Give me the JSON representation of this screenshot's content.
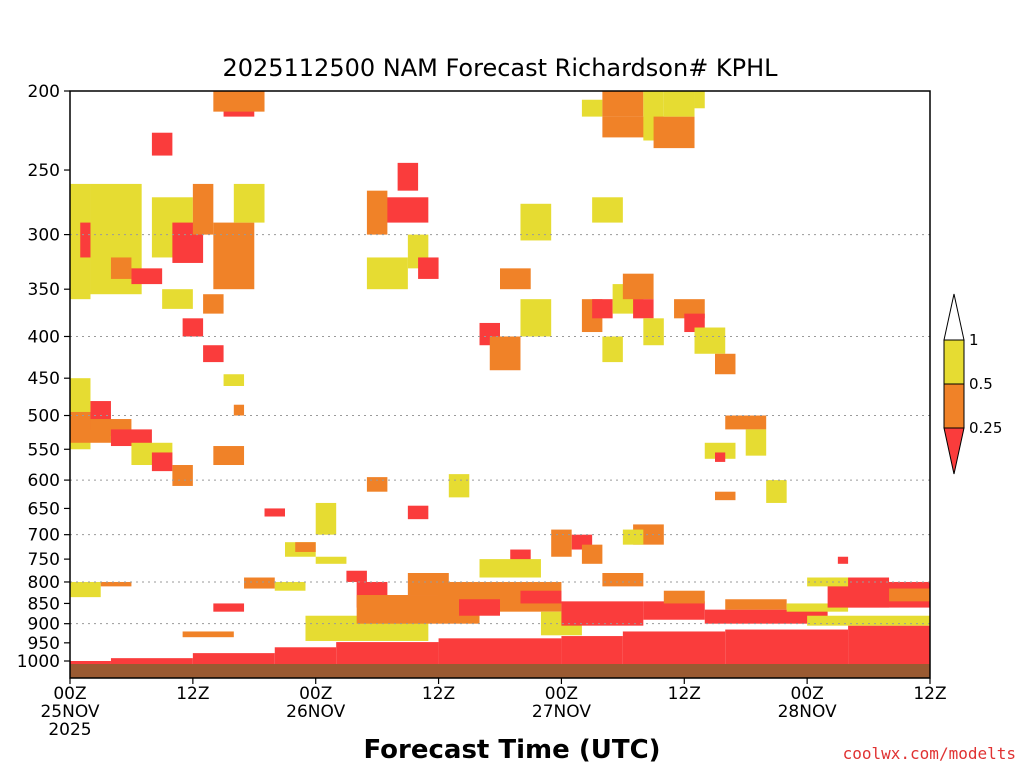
{
  "chart_data": {
    "type": "heatmap",
    "title": "2025112500 NAM Forecast Richardson# KPHL",
    "xlabel": "Forecast Time (UTC)",
    "ylabel": "",
    "credit": "coolwx.com/modelts",
    "y_axis": {
      "scale": "log-pressure",
      "range_hpa": [
        1000,
        200
      ],
      "ticks": [
        200,
        250,
        300,
        350,
        400,
        450,
        500,
        550,
        600,
        650,
        700,
        750,
        800,
        850,
        900,
        950,
        1000
      ],
      "tick_labels": [
        "200",
        "250",
        "300",
        "350",
        "400",
        "450",
        "500",
        "550",
        "600",
        "650",
        "700",
        "750",
        "800",
        "850",
        "900",
        "950",
        "1000"
      ],
      "dotted_gridlines_hpa": [
        300,
        400,
        500,
        600,
        700,
        800,
        900
      ]
    },
    "x_axis": {
      "units": "forecast hours",
      "range_hours": [
        0,
        84
      ],
      "ticks": [
        {
          "hour": 0,
          "line1": "00Z",
          "line2": "25NOV",
          "line3": "2025"
        },
        {
          "hour": 12,
          "line1": "12Z",
          "line2": "",
          "line3": ""
        },
        {
          "hour": 24,
          "line1": "00Z",
          "line2": "26NOV",
          "line3": ""
        },
        {
          "hour": 36,
          "line1": "12Z",
          "line2": "",
          "line3": ""
        },
        {
          "hour": 48,
          "line1": "00Z",
          "line2": "27NOV",
          "line3": ""
        },
        {
          "hour": 60,
          "line1": "12Z",
          "line2": "",
          "line3": ""
        },
        {
          "hour": 72,
          "line1": "00Z",
          "line2": "28NOV",
          "line3": ""
        },
        {
          "hour": 84,
          "line1": "12Z",
          "line2": "",
          "line3": ""
        }
      ]
    },
    "colorbar": {
      "labels": [
        "1",
        "0.5",
        "0.25"
      ],
      "bins": [
        {
          "range": ">1",
          "color": "#ffffff"
        },
        {
          "range": "0.5-1",
          "color": "#e6dc32"
        },
        {
          "range": "0.25-0.5",
          "color": "#f08228"
        },
        {
          "range": "<0.25",
          "color": "#fa3c3c"
        }
      ]
    },
    "colors": {
      "very_low": "#fa3c3c",
      "low": "#f08228",
      "moderate": "#e6dc32",
      "ground": "#9a5a32"
    },
    "ground_pressure_hpa": 1012,
    "surface_layer": [
      {
        "h0": 0,
        "h1": 4,
        "p_top": 1000,
        "p_bot": 1012
      },
      {
        "h0": 4,
        "h1": 12,
        "p_top": 992,
        "p_bot": 1012
      },
      {
        "h0": 12,
        "h1": 20,
        "p_top": 978,
        "p_bot": 1012
      },
      {
        "h0": 20,
        "h1": 26,
        "p_top": 962,
        "p_bot": 1012
      },
      {
        "h0": 26,
        "h1": 36,
        "p_top": 948,
        "p_bot": 1012
      },
      {
        "h0": 36,
        "h1": 48,
        "p_top": 938,
        "p_bot": 1012
      },
      {
        "h0": 48,
        "h1": 54,
        "p_top": 932,
        "p_bot": 1012
      },
      {
        "h0": 54,
        "h1": 64,
        "p_top": 920,
        "p_bot": 1012
      },
      {
        "h0": 64,
        "h1": 76,
        "p_top": 915,
        "p_bot": 1012
      },
      {
        "h0": 76,
        "h1": 84,
        "p_top": 905,
        "p_bot": 1012
      }
    ],
    "cells": [
      {
        "h0": 0,
        "h1": 2,
        "p_top": 450,
        "p_bot": 550,
        "cat": "moderate"
      },
      {
        "h0": 0,
        "h1": 4,
        "p_top": 495,
        "p_bot": 540,
        "cat": "low"
      },
      {
        "h0": 2,
        "h1": 4,
        "p_top": 480,
        "p_bot": 520,
        "cat": "very_low"
      },
      {
        "h0": 2,
        "h1": 6,
        "p_top": 505,
        "p_bot": 530,
        "cat": "low"
      },
      {
        "h0": 4,
        "h1": 8,
        "p_top": 520,
        "p_bot": 545,
        "cat": "very_low"
      },
      {
        "h0": 6,
        "h1": 10,
        "p_top": 540,
        "p_bot": 575,
        "cat": "moderate"
      },
      {
        "h0": 8,
        "h1": 10,
        "p_top": 555,
        "p_bot": 585,
        "cat": "very_low"
      },
      {
        "h0": 10,
        "h1": 12,
        "p_top": 575,
        "p_bot": 610,
        "cat": "low"
      },
      {
        "h0": 14,
        "h1": 17,
        "p_top": 545,
        "p_bot": 575,
        "cat": "low"
      },
      {
        "h0": 19,
        "h1": 21,
        "p_top": 650,
        "p_bot": 665,
        "cat": "very_low"
      },
      {
        "h0": 0,
        "h1": 2,
        "p_top": 260,
        "p_bot": 360,
        "cat": "moderate"
      },
      {
        "h0": 1,
        "h1": 5,
        "p_top": 290,
        "p_bot": 320,
        "cat": "very_low"
      },
      {
        "h0": 3,
        "h1": 5,
        "p_top": 280,
        "p_bot": 300,
        "cat": "low"
      },
      {
        "h0": 2,
        "h1": 7,
        "p_top": 260,
        "p_bot": 355,
        "cat": "moderate"
      },
      {
        "h0": 4,
        "h1": 6,
        "p_top": 320,
        "p_bot": 340,
        "cat": "low"
      },
      {
        "h0": 6,
        "h1": 9,
        "p_top": 330,
        "p_bot": 345,
        "cat": "very_low"
      },
      {
        "h0": 8,
        "h1": 12,
        "p_top": 270,
        "p_bot": 320,
        "cat": "moderate"
      },
      {
        "h0": 8,
        "h1": 10,
        "p_top": 225,
        "p_bot": 240,
        "cat": "very_low"
      },
      {
        "h0": 9,
        "h1": 12,
        "p_top": 350,
        "p_bot": 370,
        "cat": "moderate"
      },
      {
        "h0": 10,
        "h1": 13,
        "p_top": 290,
        "p_bot": 325,
        "cat": "very_low"
      },
      {
        "h0": 11,
        "h1": 13,
        "p_top": 380,
        "p_bot": 400,
        "cat": "very_low"
      },
      {
        "h0": 12,
        "h1": 14,
        "p_top": 260,
        "p_bot": 300,
        "cat": "low"
      },
      {
        "h0": 13,
        "h1": 15,
        "p_top": 355,
        "p_bot": 375,
        "cat": "low"
      },
      {
        "h0": 13,
        "h1": 15,
        "p_top": 410,
        "p_bot": 430,
        "cat": "very_low"
      },
      {
        "h0": 14,
        "h1": 18,
        "p_top": 290,
        "p_bot": 350,
        "cat": "low"
      },
      {
        "h0": 16,
        "h1": 19,
        "p_top": 260,
        "p_bot": 290,
        "cat": "moderate"
      },
      {
        "h0": 15,
        "h1": 18,
        "p_top": 200,
        "p_bot": 215,
        "cat": "very_low"
      },
      {
        "h0": 14,
        "h1": 19,
        "p_top": 200,
        "p_bot": 212,
        "cat": "low"
      },
      {
        "h0": 16,
        "h1": 17,
        "p_top": 485,
        "p_bot": 500,
        "cat": "low"
      },
      {
        "h0": 15,
        "h1": 17,
        "p_top": 445,
        "p_bot": 460,
        "cat": "moderate"
      },
      {
        "h0": 30,
        "h1": 35,
        "p_top": 270,
        "p_bot": 290,
        "cat": "very_low"
      },
      {
        "h0": 29,
        "h1": 31,
        "p_top": 265,
        "p_bot": 300,
        "cat": "low"
      },
      {
        "h0": 32,
        "h1": 34,
        "p_top": 245,
        "p_bot": 265,
        "cat": "very_low"
      },
      {
        "h0": 33,
        "h1": 35,
        "p_top": 300,
        "p_bot": 330,
        "cat": "moderate"
      },
      {
        "h0": 34,
        "h1": 36,
        "p_top": 320,
        "p_bot": 340,
        "cat": "very_low"
      },
      {
        "h0": 29,
        "h1": 33,
        "p_top": 320,
        "p_bot": 350,
        "cat": "moderate"
      },
      {
        "h0": 40,
        "h1": 42,
        "p_top": 385,
        "p_bot": 410,
        "cat": "very_low"
      },
      {
        "h0": 41,
        "h1": 44,
        "p_top": 400,
        "p_bot": 440,
        "cat": "low"
      },
      {
        "h0": 42,
        "h1": 45,
        "p_top": 330,
        "p_bot": 350,
        "cat": "low"
      },
      {
        "h0": 44,
        "h1": 47,
        "p_top": 360,
        "p_bot": 400,
        "cat": "moderate"
      },
      {
        "h0": 44,
        "h1": 47,
        "p_top": 275,
        "p_bot": 305,
        "cat": "moderate"
      },
      {
        "h0": 50,
        "h1": 52,
        "p_top": 205,
        "p_bot": 215,
        "cat": "moderate"
      },
      {
        "h0": 51,
        "h1": 54,
        "p_top": 270,
        "p_bot": 290,
        "cat": "moderate"
      },
      {
        "h0": 52,
        "h1": 57,
        "p_top": 215,
        "p_bot": 228,
        "cat": "low"
      },
      {
        "h0": 52,
        "h1": 56,
        "p_top": 200,
        "p_bot": 215,
        "cat": "low"
      },
      {
        "h0": 56,
        "h1": 58,
        "p_top": 200,
        "p_bot": 230,
        "cat": "moderate"
      },
      {
        "h0": 57,
        "h1": 61,
        "p_top": 215,
        "p_bot": 235,
        "cat": "low"
      },
      {
        "h0": 58,
        "h1": 61,
        "p_top": 200,
        "p_bot": 215,
        "cat": "moderate"
      },
      {
        "h0": 61,
        "h1": 62,
        "p_top": 200,
        "p_bot": 210,
        "cat": "moderate"
      },
      {
        "h0": 50,
        "h1": 52,
        "p_top": 360,
        "p_bot": 395,
        "cat": "low"
      },
      {
        "h0": 51,
        "h1": 53,
        "p_top": 360,
        "p_bot": 380,
        "cat": "very_low"
      },
      {
        "h0": 53,
        "h1": 56,
        "p_top": 345,
        "p_bot": 375,
        "cat": "moderate"
      },
      {
        "h0": 54,
        "h1": 57,
        "p_top": 335,
        "p_bot": 360,
        "cat": "low"
      },
      {
        "h0": 55,
        "h1": 57,
        "p_top": 360,
        "p_bot": 380,
        "cat": "very_low"
      },
      {
        "h0": 52,
        "h1": 54,
        "p_top": 400,
        "p_bot": 430,
        "cat": "moderate"
      },
      {
        "h0": 56,
        "h1": 58,
        "p_top": 380,
        "p_bot": 410,
        "cat": "moderate"
      },
      {
        "h0": 59,
        "h1": 62,
        "p_top": 360,
        "p_bot": 380,
        "cat": "low"
      },
      {
        "h0": 60,
        "h1": 62,
        "p_top": 375,
        "p_bot": 395,
        "cat": "very_low"
      },
      {
        "h0": 61,
        "h1": 64,
        "p_top": 390,
        "p_bot": 420,
        "cat": "moderate"
      },
      {
        "h0": 63,
        "h1": 65,
        "p_top": 420,
        "p_bot": 445,
        "cat": "low"
      },
      {
        "h0": 64,
        "h1": 68,
        "p_top": 500,
        "p_bot": 520,
        "cat": "low"
      },
      {
        "h0": 66,
        "h1": 68,
        "p_top": 520,
        "p_bot": 560,
        "cat": "moderate"
      },
      {
        "h0": 62,
        "h1": 65,
        "p_top": 540,
        "p_bot": 565,
        "cat": "moderate"
      },
      {
        "h0": 63,
        "h1": 64,
        "p_top": 555,
        "p_bot": 570,
        "cat": "very_low"
      },
      {
        "h0": 68,
        "h1": 70,
        "p_top": 600,
        "p_bot": 640,
        "cat": "moderate"
      },
      {
        "h0": 63,
        "h1": 65,
        "p_top": 620,
        "p_bot": 635,
        "cat": "low"
      },
      {
        "h0": 55,
        "h1": 58,
        "p_top": 680,
        "p_bot": 720,
        "cat": "low"
      },
      {
        "h0": 54,
        "h1": 56,
        "p_top": 690,
        "p_bot": 720,
        "cat": "moderate"
      },
      {
        "h0": 49,
        "h1": 51,
        "p_top": 700,
        "p_bot": 730,
        "cat": "very_low"
      },
      {
        "h0": 47,
        "h1": 49,
        "p_top": 690,
        "p_bot": 745,
        "cat": "low"
      },
      {
        "h0": 50,
        "h1": 52,
        "p_top": 720,
        "p_bot": 760,
        "cat": "low"
      },
      {
        "h0": 43,
        "h1": 45,
        "p_top": 730,
        "p_bot": 760,
        "cat": "very_low"
      },
      {
        "h0": 40,
        "h1": 46,
        "p_top": 750,
        "p_bot": 790,
        "cat": "moderate"
      },
      {
        "h0": 33,
        "h1": 37,
        "p_top": 780,
        "p_bot": 830,
        "cat": "low"
      },
      {
        "h0": 27,
        "h1": 29,
        "p_top": 775,
        "p_bot": 800,
        "cat": "very_low"
      },
      {
        "h0": 28,
        "h1": 31,
        "p_top": 800,
        "p_bot": 860,
        "cat": "very_low"
      },
      {
        "h0": 29,
        "h1": 31,
        "p_top": 595,
        "p_bot": 620,
        "cat": "low"
      },
      {
        "h0": 33,
        "h1": 35,
        "p_top": 645,
        "p_bot": 670,
        "cat": "very_low"
      },
      {
        "h0": 37,
        "h1": 39,
        "p_top": 590,
        "p_bot": 630,
        "cat": "moderate"
      },
      {
        "h0": 24,
        "h1": 26,
        "p_top": 640,
        "p_bot": 700,
        "cat": "moderate"
      },
      {
        "h0": 24,
        "h1": 27,
        "p_top": 745,
        "p_bot": 760,
        "cat": "moderate"
      },
      {
        "h0": 21,
        "h1": 24,
        "p_top": 715,
        "p_bot": 745,
        "cat": "moderate"
      },
      {
        "h0": 22,
        "h1": 24,
        "p_top": 715,
        "p_bot": 735,
        "cat": "low"
      },
      {
        "h0": 20,
        "h1": 23,
        "p_top": 800,
        "p_bot": 820,
        "cat": "moderate"
      },
      {
        "h0": 17,
        "h1": 20,
        "p_top": 790,
        "p_bot": 815,
        "cat": "low"
      },
      {
        "h0": 14,
        "h1": 17,
        "p_top": 850,
        "p_bot": 870,
        "cat": "very_low"
      },
      {
        "h0": 11,
        "h1": 16,
        "p_top": 920,
        "p_bot": 935,
        "cat": "low"
      },
      {
        "h0": 0,
        "h1": 3,
        "p_top": 800,
        "p_bot": 835,
        "cat": "moderate"
      },
      {
        "h0": 3,
        "h1": 6,
        "p_top": 800,
        "p_bot": 810,
        "cat": "low"
      },
      {
        "h0": 23,
        "h1": 35,
        "p_top": 880,
        "p_bot": 945,
        "cat": "moderate"
      },
      {
        "h0": 28,
        "h1": 40,
        "p_top": 830,
        "p_bot": 900,
        "cat": "low"
      },
      {
        "h0": 36,
        "h1": 48,
        "p_top": 800,
        "p_bot": 870,
        "cat": "low"
      },
      {
        "h0": 38,
        "h1": 42,
        "p_top": 840,
        "p_bot": 880,
        "cat": "very_low"
      },
      {
        "h0": 44,
        "h1": 48,
        "p_top": 820,
        "p_bot": 850,
        "cat": "very_low"
      },
      {
        "h0": 46,
        "h1": 50,
        "p_top": 870,
        "p_bot": 930,
        "cat": "moderate"
      },
      {
        "h0": 48,
        "h1": 56,
        "p_top": 845,
        "p_bot": 905,
        "cat": "very_low"
      },
      {
        "h0": 52,
        "h1": 56,
        "p_top": 780,
        "p_bot": 810,
        "cat": "low"
      },
      {
        "h0": 56,
        "h1": 62,
        "p_top": 845,
        "p_bot": 890,
        "cat": "very_low"
      },
      {
        "h0": 58,
        "h1": 62,
        "p_top": 820,
        "p_bot": 850,
        "cat": "low"
      },
      {
        "h0": 62,
        "h1": 74,
        "p_top": 865,
        "p_bot": 900,
        "cat": "very_low"
      },
      {
        "h0": 64,
        "h1": 70,
        "p_top": 840,
        "p_bot": 865,
        "cat": "low"
      },
      {
        "h0": 70,
        "h1": 76,
        "p_top": 850,
        "p_bot": 870,
        "cat": "moderate"
      },
      {
        "h0": 74,
        "h1": 80,
        "p_top": 790,
        "p_bot": 860,
        "cat": "very_low"
      },
      {
        "h0": 76,
        "h1": 84,
        "p_top": 800,
        "p_bot": 860,
        "cat": "very_low"
      },
      {
        "h0": 80,
        "h1": 84,
        "p_top": 815,
        "p_bot": 845,
        "cat": "low"
      },
      {
        "h0": 72,
        "h1": 76,
        "p_top": 790,
        "p_bot": 810,
        "cat": "moderate"
      },
      {
        "h0": 72,
        "h1": 84,
        "p_top": 880,
        "p_bot": 905,
        "cat": "moderate"
      },
      {
        "h0": 75,
        "h1": 76,
        "p_top": 745,
        "p_bot": 760,
        "cat": "very_low"
      }
    ]
  }
}
